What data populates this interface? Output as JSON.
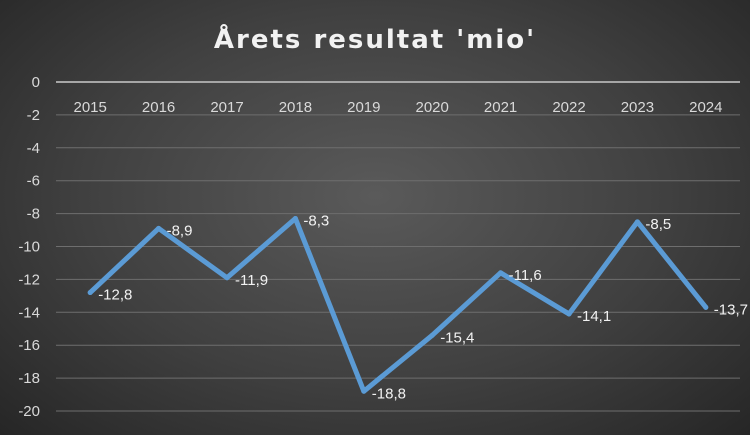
{
  "chart_data": {
    "type": "line",
    "title": "Årets resultat 'mio'",
    "categories": [
      "2015",
      "2016",
      "2017",
      "2018",
      "2019",
      "2020",
      "2021",
      "2022",
      "2023",
      "2024"
    ],
    "values": [
      -12.8,
      -8.9,
      -11.9,
      -8.3,
      -18.8,
      -15.4,
      -11.6,
      -14.1,
      -8.5,
      -13.7
    ],
    "data_labels": [
      "-12,8",
      "-8,9",
      "-11,9",
      "-8,3",
      "-18,8",
      "-15,4",
      "-11,6",
      "-14,1",
      "-8,5",
      "-13,7"
    ],
    "yticks": [
      "0",
      "-2",
      "-4",
      "-6",
      "-8",
      "-10",
      "-12",
      "-14",
      "-16",
      "-18",
      "-20"
    ],
    "ylim": [
      -20,
      0
    ],
    "xlabel": "",
    "ylabel": "",
    "grid": true,
    "legend": "none",
    "colors": {
      "line": "#5b9bd5",
      "background": "#404040",
      "grid": "#6e6e6e"
    }
  }
}
